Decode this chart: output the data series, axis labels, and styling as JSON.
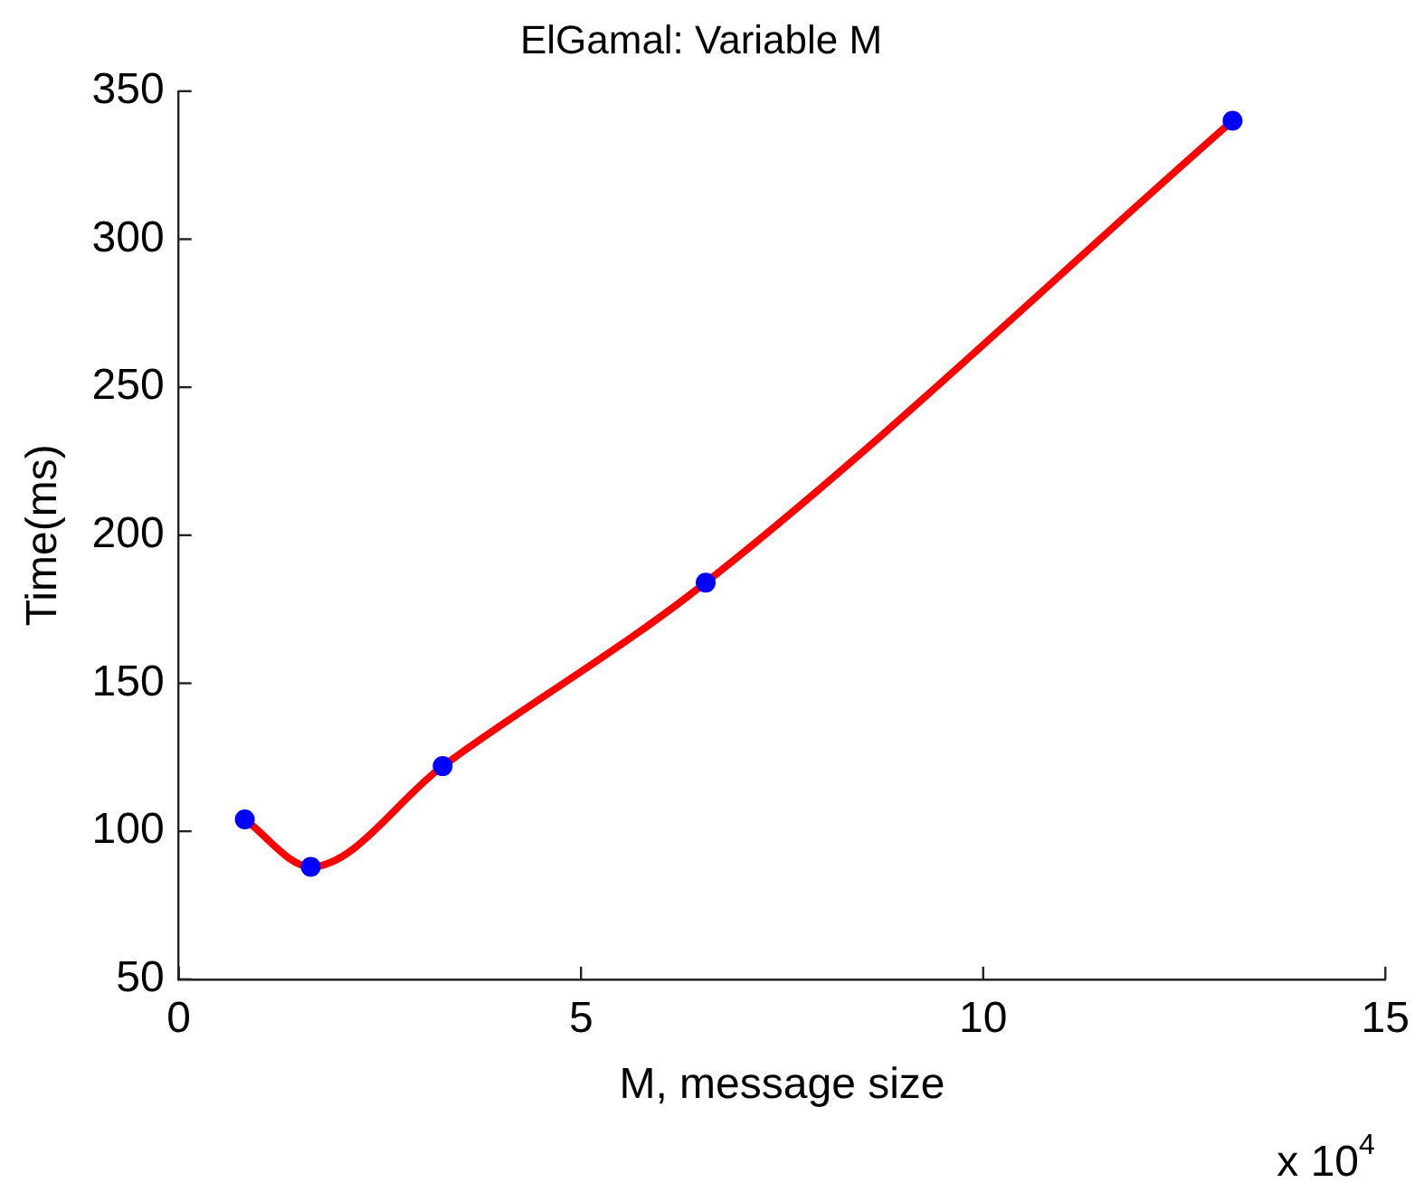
{
  "chart_data": {
    "type": "line",
    "title": "ElGamal: Variable M",
    "xlabel": "M, message size",
    "ylabel": "Time(ms)",
    "x": [
      0.82,
      1.64,
      3.28,
      6.55,
      13.1
    ],
    "series": [
      {
        "type": "line",
        "color": "#ff0000",
        "values": [
          104,
          88,
          122,
          184,
          340
        ],
        "marker": "none"
      },
      {
        "type": "scatter",
        "color": "#0000ff",
        "values": [
          104,
          88,
          122,
          184,
          340
        ],
        "marker": "circle"
      }
    ],
    "xlim": [
      0,
      15
    ],
    "xticks": [
      0,
      5,
      10,
      15
    ],
    "ylim": [
      50,
      350
    ],
    "yticks": [
      50,
      100,
      150,
      200,
      250,
      300,
      350
    ],
    "annotations": [
      "x 10$^{4}$"
    ],
    "grid": false,
    "legend": false
  }
}
